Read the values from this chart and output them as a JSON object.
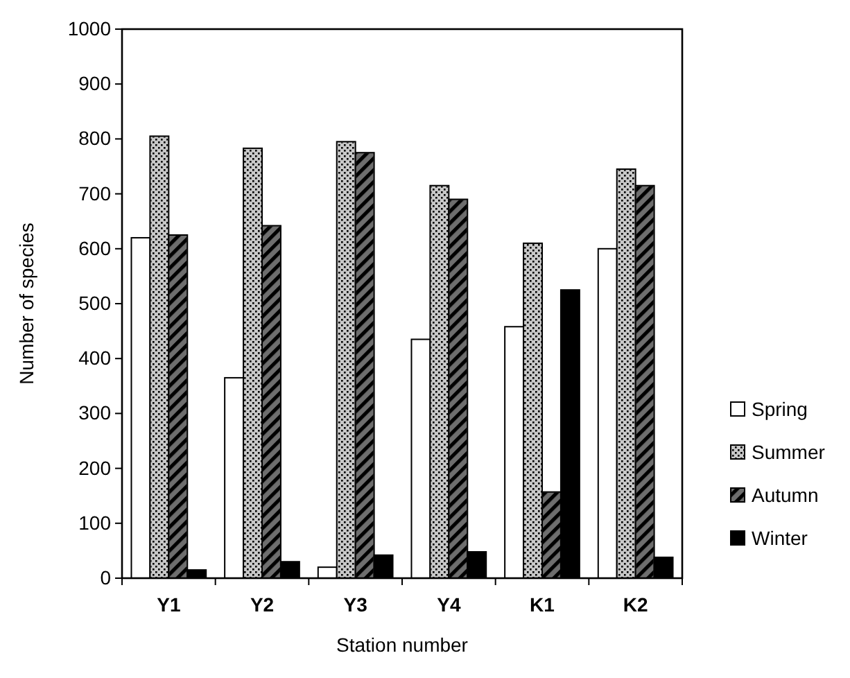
{
  "chart_data": {
    "type": "bar",
    "xlabel": "Station number",
    "ylabel": "Number of species",
    "categories": [
      "Y1",
      "Y2",
      "Y3",
      "Y4",
      "K1",
      "K2"
    ],
    "series": [
      {
        "name": "Spring",
        "color": "#ffffff",
        "values": [
          620,
          365,
          20,
          435,
          458,
          600
        ]
      },
      {
        "name": "Summer",
        "color": "#c8c8c8",
        "values": [
          805,
          783,
          795,
          715,
          610,
          745
        ]
      },
      {
        "name": "Autumn",
        "color": "#6e6e6e",
        "values": [
          625,
          642,
          775,
          690,
          157,
          715
        ]
      },
      {
        "name": "Winter",
        "color": "#000000",
        "values": [
          15,
          30,
          42,
          48,
          525,
          38
        ]
      }
    ],
    "ylim": [
      0,
      1000
    ],
    "yticks": [
      0,
      100,
      200,
      300,
      400,
      500,
      600,
      700,
      800,
      900,
      1000
    ],
    "grid": false,
    "legend": "right"
  }
}
